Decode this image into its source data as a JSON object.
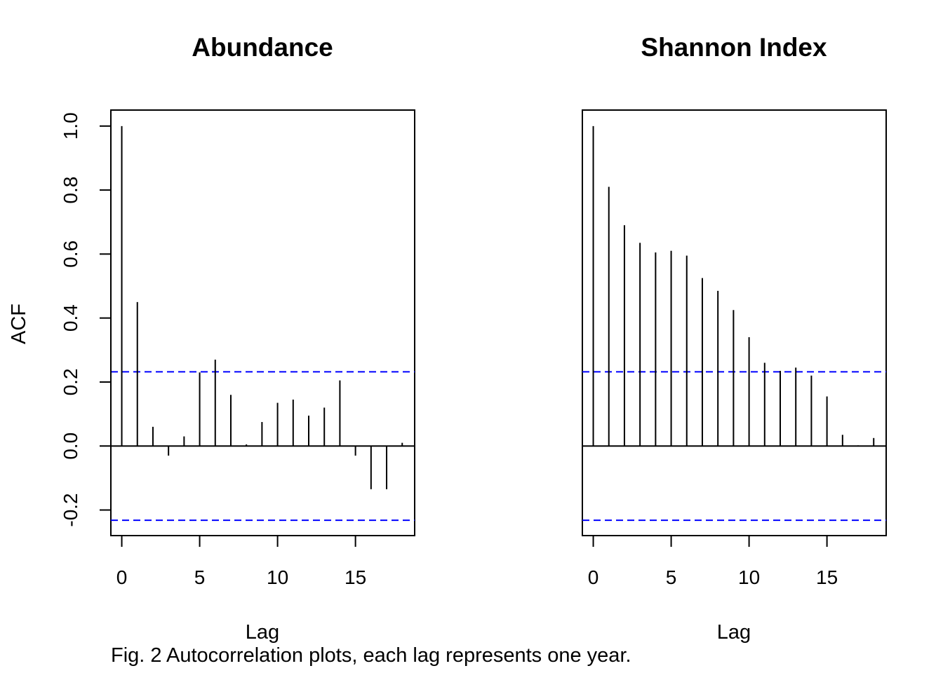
{
  "caption": "Fig. 2 Autocorrelation plots, each lag represents one year.",
  "ylabel": "ACF",
  "chart_data": [
    {
      "type": "bar",
      "title": "Abundance",
      "xlabel": "Lag",
      "ylabel": "ACF",
      "x": [
        0,
        1,
        2,
        3,
        4,
        5,
        6,
        7,
        8,
        9,
        10,
        11,
        12,
        13,
        14,
        15,
        16,
        17,
        18
      ],
      "values": [
        1.0,
        0.45,
        0.06,
        -0.03,
        0.03,
        0.23,
        0.27,
        0.16,
        0.005,
        0.075,
        0.135,
        0.145,
        0.095,
        0.12,
        0.205,
        -0.03,
        -0.135,
        -0.135,
        0.01
      ],
      "conf_limit": 0.232,
      "xlim": [
        -0.7,
        18.8
      ],
      "ylim": [
        -0.28,
        1.05
      ],
      "x_ticks": [
        0,
        5,
        10,
        15
      ],
      "y_ticks": [
        -0.2,
        0.0,
        0.2,
        0.4,
        0.6,
        0.8,
        1.0
      ],
      "y_tick_labels": [
        "-0.2",
        "0.0",
        "0.2",
        "0.4",
        "0.6",
        "0.8",
        "1.0"
      ],
      "conf_color": "#0000ff"
    },
    {
      "type": "bar",
      "title": "Shannon Index",
      "xlabel": "Lag",
      "x": [
        0,
        1,
        2,
        3,
        4,
        5,
        6,
        7,
        8,
        9,
        10,
        11,
        12,
        13,
        14,
        15,
        16,
        17,
        18
      ],
      "values": [
        1.0,
        0.81,
        0.69,
        0.635,
        0.605,
        0.61,
        0.595,
        0.525,
        0.485,
        0.425,
        0.34,
        0.26,
        0.235,
        0.245,
        0.22,
        0.155,
        0.035,
        0.002,
        0.025
      ],
      "conf_limit": 0.232,
      "xlim": [
        -0.7,
        18.8
      ],
      "ylim": [
        -0.28,
        1.05
      ],
      "x_ticks": [
        0,
        5,
        10,
        15
      ],
      "conf_color": "#0000ff"
    }
  ]
}
